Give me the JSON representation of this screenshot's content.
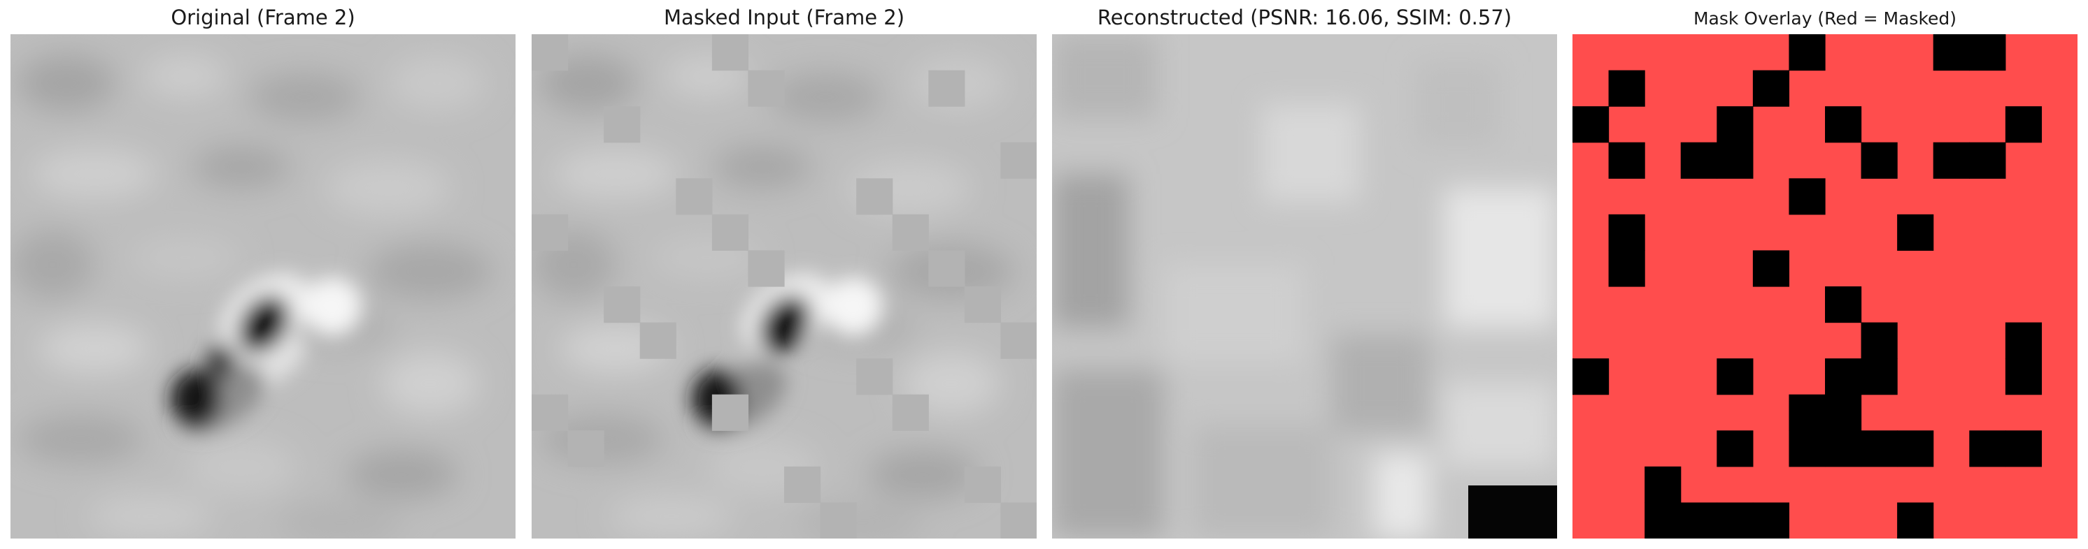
{
  "figure": {
    "panels": [
      {
        "id": "original",
        "title": "Original (Frame 2)"
      },
      {
        "id": "masked",
        "title": "Masked Input (Frame 2)"
      },
      {
        "id": "reconstructed",
        "title": "Reconstructed (PSNR: 16.06, SSIM: 0.57)"
      },
      {
        "id": "overlay",
        "title": "Mask Overlay (Red = Masked)"
      }
    ],
    "grid": {
      "rows": 14,
      "cols": 14
    },
    "visible_patches": [
      [
        0,
        6
      ],
      [
        0,
        10
      ],
      [
        0,
        11
      ],
      [
        1,
        1
      ],
      [
        1,
        5
      ],
      [
        2,
        0
      ],
      [
        2,
        4
      ],
      [
        2,
        7
      ],
      [
        2,
        12
      ],
      [
        3,
        1
      ],
      [
        3,
        3
      ],
      [
        3,
        4
      ],
      [
        3,
        8
      ],
      [
        3,
        10
      ],
      [
        3,
        11
      ],
      [
        4,
        6
      ],
      [
        5,
        1
      ],
      [
        5,
        9
      ],
      [
        6,
        1
      ],
      [
        6,
        5
      ],
      [
        7,
        7
      ],
      [
        8,
        8
      ],
      [
        8,
        12
      ],
      [
        9,
        0
      ],
      [
        9,
        4
      ],
      [
        9,
        7
      ],
      [
        9,
        8
      ],
      [
        9,
        12
      ],
      [
        10,
        6
      ],
      [
        10,
        7
      ],
      [
        11,
        4
      ],
      [
        11,
        6
      ],
      [
        11,
        7
      ],
      [
        11,
        8
      ],
      [
        11,
        9
      ],
      [
        11,
        11
      ],
      [
        11,
        12
      ],
      [
        12,
        2
      ],
      [
        13,
        2
      ],
      [
        13,
        3
      ],
      [
        13,
        4
      ],
      [
        13,
        5
      ],
      [
        13,
        9
      ]
    ],
    "colors": {
      "masked_gray": "#b3b3b3",
      "overlay_red": "#ff4d4d",
      "visible_black": "#000000"
    }
  }
}
